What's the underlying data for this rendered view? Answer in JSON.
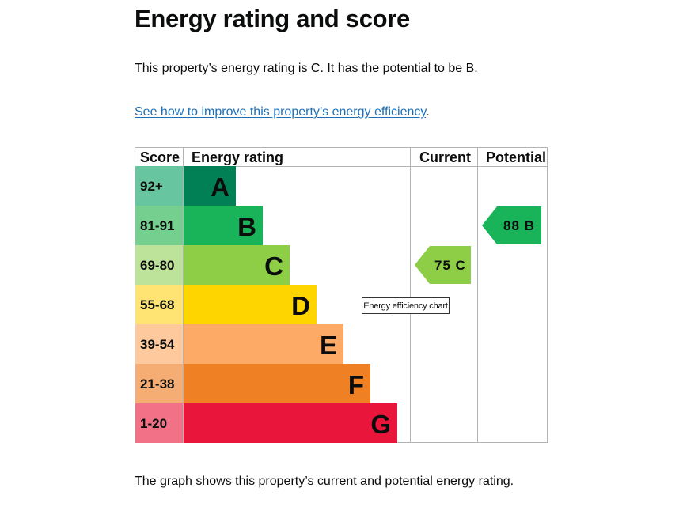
{
  "heading": "Energy rating and score",
  "intro": "This property’s energy rating is C. It has the potential to be B.",
  "link_text": "See how to improve this property’s energy efficiency",
  "link_suffix": ".",
  "caption": "The graph shows this property’s current and potential energy rating.",
  "tooltip": "Energy efficiency chart",
  "chart_data": {
    "type": "bar",
    "columns": [
      "Score",
      "Energy rating",
      "Current",
      "Potential"
    ],
    "bands": [
      {
        "score": "92+",
        "letter": "A",
        "color": "#008054",
        "score_bg": "#67c6a0"
      },
      {
        "score": "81-91",
        "letter": "B",
        "color": "#19b459",
        "score_bg": "#75cf8f"
      },
      {
        "score": "69-80",
        "letter": "C",
        "color": "#8dce46",
        "score_bg": "#bde39a"
      },
      {
        "score": "55-68",
        "letter": "D",
        "color": "#ffd500",
        "score_bg": "#ffe473"
      },
      {
        "score": "39-54",
        "letter": "E",
        "color": "#fcaa65",
        "score_bg": "#fdc99d"
      },
      {
        "score": "21-38",
        "letter": "F",
        "color": "#ef8023",
        "score_bg": "#f5ad74"
      },
      {
        "score": "1-20",
        "letter": "G",
        "color": "#e9153b",
        "score_bg": "#f27186"
      }
    ],
    "current": {
      "value": 75,
      "letter": "C",
      "label": "75 C",
      "color": "#8dce46"
    },
    "potential": {
      "value": 88,
      "letter": "B",
      "label": "88 B",
      "color": "#19b459"
    }
  }
}
